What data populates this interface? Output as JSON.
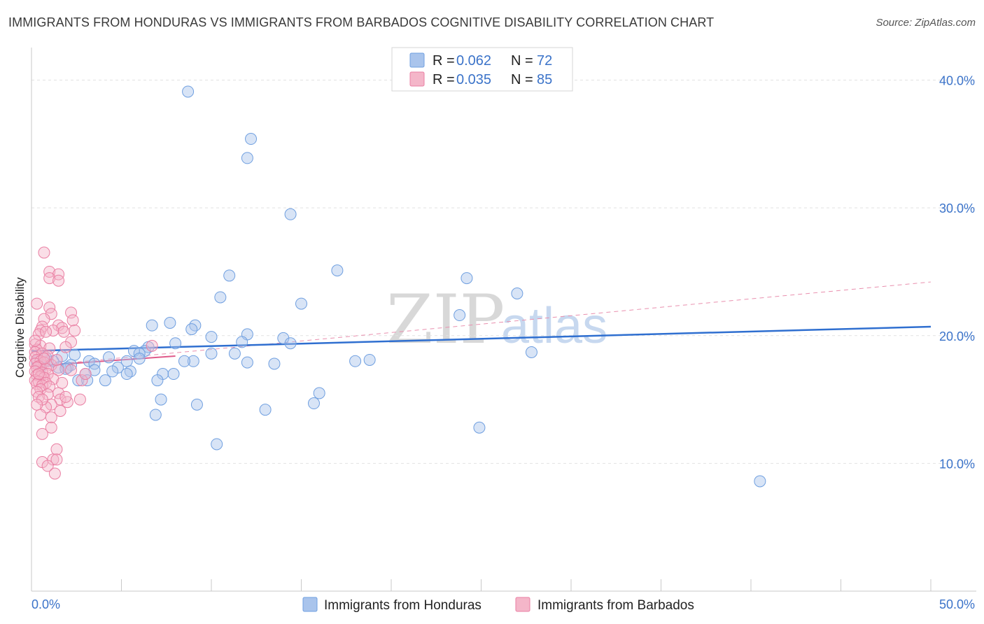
{
  "header": {
    "title": "IMMIGRANTS FROM HONDURAS VS IMMIGRANTS FROM BARBADOS COGNITIVE DISABILITY CORRELATION CHART",
    "source": "Source: ZipAtlas.com"
  },
  "watermark": {
    "zip": "ZIP",
    "atlas": "atlas"
  },
  "legend_top": {
    "rows": [
      {
        "r_label": "R = ",
        "r_value": "0.062",
        "n_label": "N = ",
        "n_value": "72",
        "color": "#a9c4ec"
      },
      {
        "r_label": "R = ",
        "r_value": "0.035",
        "n_label": "N = ",
        "n_value": "85",
        "color": "#f4b6c9"
      }
    ]
  },
  "legend_bottom": {
    "items": [
      {
        "label": "Immigrants from Honduras",
        "color": "#a9c4ec"
      },
      {
        "label": "Immigrants from Barbados",
        "color": "#f4b6c9"
      }
    ]
  },
  "chart_data": {
    "type": "scatter",
    "title": "IMMIGRANTS FROM HONDURAS VS IMMIGRANTS FROM BARBADOS COGNITIVE DISABILITY CORRELATION CHART",
    "xlabel": "",
    "ylabel": "Cognitive Disability",
    "xlim": [
      0,
      50
    ],
    "ylim": [
      0,
      42
    ],
    "x_tick_labels": [
      "0.0%",
      "50.0%"
    ],
    "y_ticks": [
      10,
      20,
      30,
      40
    ],
    "y_tick_labels": [
      "10.0%",
      "20.0%",
      "30.0%",
      "40.0%"
    ],
    "grid": true,
    "legend_placement": "top-center",
    "series": [
      {
        "name": "Immigrants from Honduras",
        "color": "#6f9fe0",
        "fill": "#a9c4ec",
        "trend": {
          "x": [
            0,
            50
          ],
          "y": [
            18.8,
            20.7
          ],
          "style": "solid",
          "color": "#2f6fd0"
        },
        "points": [
          [
            8.7,
            39.1
          ],
          [
            12.2,
            35.4
          ],
          [
            12.0,
            33.9
          ],
          [
            14.4,
            29.5
          ],
          [
            17.0,
            25.1
          ],
          [
            11.0,
            24.7
          ],
          [
            24.2,
            24.5
          ],
          [
            10.5,
            23.0
          ],
          [
            27.0,
            23.3
          ],
          [
            15.0,
            22.5
          ],
          [
            23.8,
            21.6
          ],
          [
            7.7,
            21.0
          ],
          [
            6.7,
            20.8
          ],
          [
            9.1,
            20.8
          ],
          [
            8.9,
            20.5
          ],
          [
            12.0,
            20.1
          ],
          [
            10.0,
            19.9
          ],
          [
            14.0,
            19.8
          ],
          [
            11.7,
            19.5
          ],
          [
            14.4,
            19.4
          ],
          [
            8.0,
            19.4
          ],
          [
            6.5,
            19.1
          ],
          [
            6.3,
            18.8
          ],
          [
            5.7,
            18.8
          ],
          [
            6.0,
            18.6
          ],
          [
            11.3,
            18.6
          ],
          [
            10.0,
            18.6
          ],
          [
            2.4,
            18.5
          ],
          [
            1.7,
            18.4
          ],
          [
            4.3,
            18.3
          ],
          [
            18.0,
            18.0
          ],
          [
            9.0,
            18.0
          ],
          [
            8.5,
            18.0
          ],
          [
            12.0,
            17.9
          ],
          [
            13.5,
            17.8
          ],
          [
            3.2,
            18.0
          ],
          [
            3.5,
            17.8
          ],
          [
            5.3,
            18.0
          ],
          [
            1.2,
            18.0
          ],
          [
            0.9,
            18.0
          ],
          [
            2.2,
            17.7
          ],
          [
            0.6,
            17.8
          ],
          [
            1.5,
            17.5
          ],
          [
            2.0,
            17.5
          ],
          [
            0.3,
            18.0
          ],
          [
            0.5,
            17.5
          ],
          [
            1.9,
            17.4
          ],
          [
            3.5,
            17.3
          ],
          [
            4.8,
            17.5
          ],
          [
            5.5,
            17.2
          ],
          [
            7.3,
            17.0
          ],
          [
            5.3,
            17.0
          ],
          [
            4.5,
            17.2
          ],
          [
            3.0,
            17.0
          ],
          [
            2.6,
            16.5
          ],
          [
            4.1,
            16.5
          ],
          [
            3.1,
            16.5
          ],
          [
            7.0,
            16.5
          ],
          [
            27.8,
            18.7
          ],
          [
            18.8,
            18.1
          ],
          [
            7.2,
            15.0
          ],
          [
            16.0,
            15.5
          ],
          [
            9.2,
            14.6
          ],
          [
            15.7,
            14.7
          ],
          [
            13.0,
            14.2
          ],
          [
            6.9,
            13.8
          ],
          [
            24.9,
            12.8
          ],
          [
            10.3,
            11.5
          ],
          [
            40.5,
            8.6
          ],
          [
            7.9,
            17.0
          ],
          [
            6.0,
            18.2
          ],
          [
            0.8,
            18.3
          ]
        ]
      },
      {
        "name": "Immigrants from Barbados",
        "color": "#ea7fa3",
        "fill": "#f4b6c9",
        "trend": {
          "x": [
            0,
            8
          ],
          "y": [
            17.6,
            18.4
          ],
          "style": "solid",
          "color": "#e05a8a"
        },
        "trend_extended": {
          "x": [
            0,
            50
          ],
          "y": [
            17.6,
            24.2
          ],
          "style": "dashed",
          "color": "#e98fae"
        },
        "points": [
          [
            0.7,
            26.5
          ],
          [
            1.0,
            25.0
          ],
          [
            1.5,
            24.8
          ],
          [
            1.0,
            24.5
          ],
          [
            1.5,
            24.3
          ],
          [
            0.3,
            22.5
          ],
          [
            1.0,
            22.2
          ],
          [
            2.2,
            21.8
          ],
          [
            1.1,
            21.7
          ],
          [
            0.7,
            21.3
          ],
          [
            2.3,
            21.2
          ],
          [
            0.6,
            20.7
          ],
          [
            1.5,
            20.8
          ],
          [
            1.7,
            20.6
          ],
          [
            0.5,
            20.4
          ],
          [
            1.2,
            20.4
          ],
          [
            1.8,
            20.3
          ],
          [
            0.4,
            20.1
          ],
          [
            0.8,
            20.3
          ],
          [
            2.2,
            19.5
          ],
          [
            0.2,
            19.3
          ],
          [
            0.5,
            19.2
          ],
          [
            1.0,
            19.0
          ],
          [
            0.3,
            18.9
          ],
          [
            0.2,
            18.7
          ],
          [
            0.6,
            18.6
          ],
          [
            0.9,
            18.4
          ],
          [
            0.2,
            18.3
          ],
          [
            0.3,
            18.1
          ],
          [
            0.5,
            18.0
          ],
          [
            0.7,
            17.9
          ],
          [
            0.2,
            17.8
          ],
          [
            1.1,
            17.7
          ],
          [
            0.4,
            17.6
          ],
          [
            0.3,
            17.5
          ],
          [
            0.8,
            17.4
          ],
          [
            1.5,
            17.3
          ],
          [
            0.2,
            17.2
          ],
          [
            0.6,
            17.1
          ],
          [
            0.9,
            17.0
          ],
          [
            0.3,
            16.9
          ],
          [
            0.5,
            16.8
          ],
          [
            0.7,
            16.7
          ],
          [
            1.2,
            16.6
          ],
          [
            0.2,
            16.5
          ],
          [
            0.4,
            16.4
          ],
          [
            0.8,
            16.3
          ],
          [
            0.3,
            16.2
          ],
          [
            0.6,
            16.1
          ],
          [
            1.0,
            16.0
          ],
          [
            0.5,
            15.8
          ],
          [
            0.3,
            15.6
          ],
          [
            1.5,
            15.5
          ],
          [
            0.9,
            15.4
          ],
          [
            0.4,
            15.2
          ],
          [
            1.6,
            15.0
          ],
          [
            2.7,
            15.0
          ],
          [
            2.0,
            14.8
          ],
          [
            1.1,
            14.6
          ],
          [
            0.8,
            14.4
          ],
          [
            1.6,
            14.1
          ],
          [
            0.5,
            13.8
          ],
          [
            1.1,
            13.6
          ],
          [
            1.1,
            12.8
          ],
          [
            0.6,
            12.3
          ],
          [
            1.4,
            11.1
          ],
          [
            0.6,
            10.1
          ],
          [
            1.2,
            10.3
          ],
          [
            1.4,
            10.3
          ],
          [
            0.9,
            9.8
          ],
          [
            1.3,
            9.2
          ],
          [
            2.2,
            17.3
          ],
          [
            2.8,
            16.5
          ],
          [
            6.7,
            19.2
          ],
          [
            3.0,
            17.0
          ],
          [
            0.2,
            19.6
          ],
          [
            1.9,
            19.1
          ],
          [
            0.7,
            18.2
          ],
          [
            1.4,
            18.1
          ],
          [
            0.4,
            17.0
          ],
          [
            1.7,
            16.3
          ],
          [
            0.6,
            15.0
          ],
          [
            0.3,
            14.6
          ],
          [
            1.9,
            15.2
          ],
          [
            2.4,
            20.4
          ]
        ]
      }
    ]
  }
}
